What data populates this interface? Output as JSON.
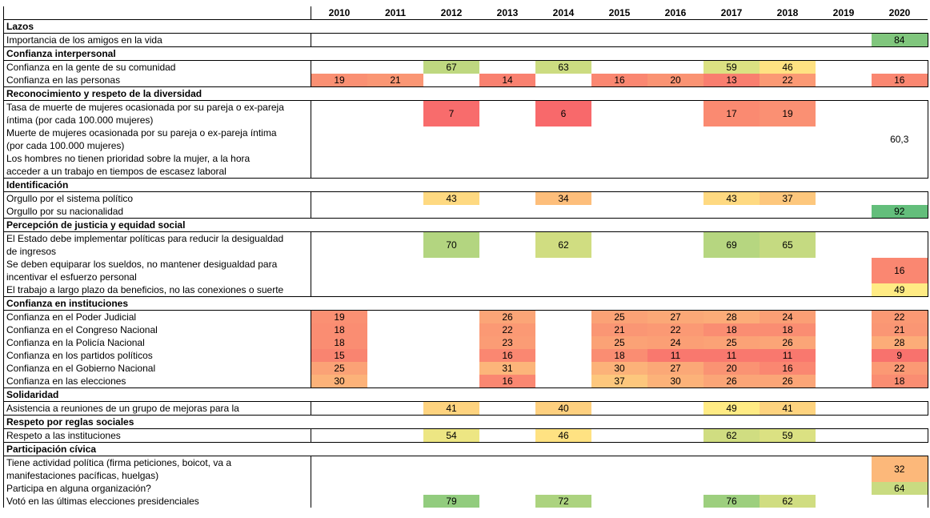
{
  "header": {
    "years": [
      "2010",
      "2011",
      "2012",
      "2013",
      "2014",
      "2015",
      "2016",
      "2017",
      "2018",
      "2019",
      "2020"
    ]
  },
  "sections": [
    {
      "title": "Lazos",
      "rows": [
        {
          "label": [
            "Importancia de los amigos en la vida"
          ],
          "values": [
            null,
            null,
            null,
            null,
            null,
            null,
            null,
            null,
            null,
            null,
            84
          ]
        }
      ]
    },
    {
      "title": "Confianza interpersonal",
      "rows": [
        {
          "label": [
            "Confianza en la gente de su comunidad"
          ],
          "values": [
            null,
            null,
            67,
            null,
            63,
            null,
            null,
            59,
            46,
            null,
            null
          ]
        },
        {
          "label": [
            "Confianza en las personas"
          ],
          "values": [
            19,
            21,
            null,
            14,
            null,
            16,
            20,
            13,
            22,
            null,
            16
          ]
        }
      ]
    },
    {
      "title": "Reconocimiento y respeto de la diversidad",
      "rows": [
        {
          "label": [
            "Tasa de muerte de mujeres ocasionada por su pareja o ex-pareja",
            "íntima (por cada 100.000 mujeres)"
          ],
          "values": [
            null,
            null,
            7,
            null,
            6,
            null,
            null,
            17,
            19,
            null,
            null
          ]
        },
        {
          "label": [
            "Muerte de mujeres ocasionada por su pareja o ex-pareja íntima",
            "(por cada 100.000 mujeres)"
          ],
          "values": [
            null,
            null,
            null,
            null,
            null,
            null,
            null,
            null,
            null,
            null,
            "60,3"
          ]
        },
        {
          "label": [
            "Los hombres no tienen prioridad sobre la mujer, a la hora",
            "acceder a un trabajo en tiempos de escasez laboral"
          ],
          "values": [
            null,
            null,
            null,
            null,
            null,
            null,
            null,
            null,
            null,
            null,
            null
          ]
        }
      ]
    },
    {
      "title": "Identificación",
      "rows": [
        {
          "label": [
            "Orgullo por el sistema político"
          ],
          "values": [
            null,
            null,
            43,
            null,
            34,
            null,
            null,
            43,
            37,
            null,
            null
          ]
        },
        {
          "label": [
            "Orgullo por su nacionalidad"
          ],
          "values": [
            null,
            null,
            null,
            null,
            null,
            null,
            null,
            null,
            null,
            null,
            92
          ]
        }
      ]
    },
    {
      "title": "Percepción de justicia y equidad social",
      "rows": [
        {
          "label": [
            "El Estado debe implementar políticas para reducir la desigualdad",
            "de ingresos"
          ],
          "values": [
            null,
            null,
            70,
            null,
            62,
            null,
            null,
            69,
            65,
            null,
            null
          ]
        },
        {
          "label": [
            "Se deben equiparar los sueldos, no mantener desigualdad para",
            "incentivar el esfuerzo personal"
          ],
          "values": [
            null,
            null,
            null,
            null,
            null,
            null,
            null,
            null,
            null,
            null,
            16
          ]
        },
        {
          "label": [
            "El trabajo a largo plazo da beneficios, no las conexiones o suerte"
          ],
          "values": [
            null,
            null,
            null,
            null,
            null,
            null,
            null,
            null,
            null,
            null,
            49
          ]
        }
      ]
    },
    {
      "title": "Confianza en instituciones",
      "rows": [
        {
          "label": [
            "Confianza en el Poder Judicial"
          ],
          "values": [
            19,
            null,
            null,
            26,
            null,
            25,
            27,
            28,
            24,
            null,
            22
          ]
        },
        {
          "label": [
            "Confianza en el Congreso Nacional"
          ],
          "values": [
            18,
            null,
            null,
            22,
            null,
            21,
            22,
            18,
            18,
            null,
            21
          ]
        },
        {
          "label": [
            "Confianza en la Policía Nacional"
          ],
          "values": [
            18,
            null,
            null,
            23,
            null,
            25,
            24,
            25,
            26,
            null,
            28
          ]
        },
        {
          "label": [
            "Confianza en los partidos políticos"
          ],
          "values": [
            15,
            null,
            null,
            16,
            null,
            18,
            11,
            11,
            11,
            null,
            9
          ]
        },
        {
          "label": [
            "Confianza en el Gobierno Nacional"
          ],
          "values": [
            25,
            null,
            null,
            31,
            null,
            30,
            27,
            20,
            16,
            null,
            22
          ]
        },
        {
          "label": [
            "Confianza en las elecciones"
          ],
          "values": [
            30,
            null,
            null,
            16,
            null,
            37,
            30,
            26,
            26,
            null,
            18
          ]
        }
      ]
    },
    {
      "title": "Solidaridad",
      "rows": [
        {
          "label": [
            "Asistencia a reuniones de un grupo de mejoras para la"
          ],
          "values": [
            null,
            null,
            41,
            null,
            40,
            null,
            null,
            49,
            41,
            null,
            null
          ]
        }
      ]
    },
    {
      "title": "Respeto por reglas sociales",
      "rows": [
        {
          "label": [
            "Respeto a las instituciones"
          ],
          "values": [
            null,
            null,
            54,
            null,
            46,
            null,
            null,
            62,
            59,
            null,
            null
          ]
        }
      ]
    },
    {
      "title": "Participación cívica",
      "rows": [
        {
          "label": [
            "Tiene actividad política (firma peticiones, boicot, va a",
            "manifestaciones pacíficas, huelgas)"
          ],
          "values": [
            null,
            null,
            null,
            null,
            null,
            null,
            null,
            null,
            null,
            null,
            32
          ]
        },
        {
          "label": [
            "Participa en alguna organización?"
          ],
          "values": [
            null,
            null,
            null,
            null,
            null,
            null,
            null,
            null,
            null,
            null,
            64
          ]
        },
        {
          "label": [
            "Votó en las últimas elecciones presidenciales"
          ],
          "values": [
            null,
            null,
            79,
            null,
            72,
            null,
            null,
            76,
            62,
            null,
            null
          ]
        }
      ]
    }
  ]
}
